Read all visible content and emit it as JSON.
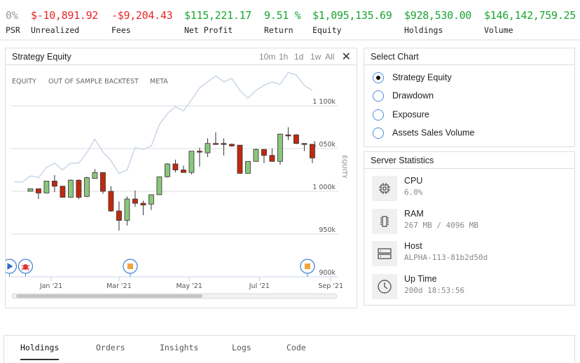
{
  "stats": [
    {
      "value": "0%",
      "label": "PSR",
      "color": "#999999"
    },
    {
      "value": "$-10,891.92",
      "label": "Unrealized",
      "color": "#e8262a"
    },
    {
      "value": "-$9,204.43",
      "label": "Fees",
      "color": "#e8262a"
    },
    {
      "value": "$115,221.17",
      "label": "Net Profit",
      "color": "#1aa532"
    },
    {
      "value": "9.51 %",
      "label": "Return",
      "color": "#1aa532"
    },
    {
      "value": "$1,095,135.69",
      "label": "Equity",
      "color": "#1aa532"
    },
    {
      "value": "$928,530.00",
      "label": "Holdings",
      "color": "#1aa532"
    },
    {
      "value": "$146,142,759.25",
      "label": "Volume",
      "color": "#1aa532"
    }
  ],
  "chart_panel": {
    "title": "Strategy Equity",
    "timeframes": [
      "10m",
      "1h",
      "1d",
      "1w",
      "All"
    ],
    "close_icon": "close-icon"
  },
  "chart_data": {
    "type": "candlestick",
    "legend": [
      "EQUITY",
      "OUT OF SAMPLE BACKTEST",
      "META"
    ],
    "ylabel": "EQUITY",
    "ylim": [
      900,
      1140
    ],
    "y_ticks": [
      "900k",
      "950k",
      "1 000k",
      "1 050k",
      "1 100k"
    ],
    "y_tick_values": [
      900,
      950,
      1000,
      1050,
      1100
    ],
    "x_ticks": [
      "Jan '21",
      "Mar '21",
      "May '21",
      "Jul '21",
      "Sep '21"
    ],
    "x_tick_dates": [
      "2021-01-01",
      "2021-03-01",
      "2021-05-01",
      "2021-07-01",
      "2021-09-01"
    ],
    "grid": true,
    "colors": {
      "up": "#8cc57c",
      "down": "#c0290f",
      "meta": "#c9d6e8",
      "flag": "#3d7fd0"
    },
    "candles": [
      {
        "date": "2020-12-14",
        "o": 1000,
        "h": 1003,
        "l": 1000,
        "c": 1003
      },
      {
        "date": "2020-12-21",
        "o": 1003,
        "h": 1003,
        "l": 991,
        "c": 998
      },
      {
        "date": "2020-12-28",
        "o": 998,
        "h": 1012,
        "l": 998,
        "c": 1012
      },
      {
        "date": "2021-01-04",
        "o": 1012,
        "h": 1019,
        "l": 999,
        "c": 1006
      },
      {
        "date": "2021-01-11",
        "o": 1006,
        "h": 1006,
        "l": 993,
        "c": 993
      },
      {
        "date": "2021-01-18",
        "o": 993,
        "h": 1014,
        "l": 993,
        "c": 1013
      },
      {
        "date": "2021-01-25",
        "o": 1013,
        "h": 1014,
        "l": 991,
        "c": 993
      },
      {
        "date": "2021-02-01",
        "o": 994,
        "h": 1017,
        "l": 993,
        "c": 1016
      },
      {
        "date": "2021-02-08",
        "o": 1015,
        "h": 1026,
        "l": 1015,
        "c": 1022
      },
      {
        "date": "2021-02-15",
        "o": 1022,
        "h": 1022,
        "l": 997,
        "c": 1000
      },
      {
        "date": "2021-02-22",
        "o": 1000,
        "h": 1006,
        "l": 976,
        "c": 977
      },
      {
        "date": "2021-03-01",
        "o": 977,
        "h": 988,
        "l": 954,
        "c": 966
      },
      {
        "date": "2021-03-08",
        "o": 966,
        "h": 994,
        "l": 960,
        "c": 991
      },
      {
        "date": "2021-03-15",
        "o": 991,
        "h": 1001,
        "l": 982,
        "c": 986
      },
      {
        "date": "2021-03-22",
        "o": 986,
        "h": 989,
        "l": 972,
        "c": 984
      },
      {
        "date": "2021-03-29",
        "o": 985,
        "h": 996,
        "l": 978,
        "c": 996
      },
      {
        "date": "2021-04-05",
        "o": 996,
        "h": 1017,
        "l": 996,
        "c": 1017
      },
      {
        "date": "2021-04-12",
        "o": 1017,
        "h": 1033,
        "l": 1016,
        "c": 1032
      },
      {
        "date": "2021-04-19",
        "o": 1032,
        "h": 1037,
        "l": 1022,
        "c": 1025
      },
      {
        "date": "2021-04-26",
        "o": 1025,
        "h": 1030,
        "l": 1022,
        "c": 1022
      },
      {
        "date": "2021-05-03",
        "o": 1022,
        "h": 1047,
        "l": 1020,
        "c": 1047
      },
      {
        "date": "2021-05-10",
        "o": 1047,
        "h": 1051,
        "l": 1029,
        "c": 1046
      },
      {
        "date": "2021-05-17",
        "o": 1045,
        "h": 1062,
        "l": 1040,
        "c": 1056
      },
      {
        "date": "2021-05-24",
        "o": 1056,
        "h": 1069,
        "l": 1056,
        "c": 1056
      },
      {
        "date": "2021-05-31",
        "o": 1056,
        "h": 1062,
        "l": 1042,
        "c": 1055
      },
      {
        "date": "2021-06-07",
        "o": 1055,
        "h": 1056,
        "l": 1052,
        "c": 1053
      },
      {
        "date": "2021-06-14",
        "o": 1054,
        "h": 1054,
        "l": 1021,
        "c": 1021
      },
      {
        "date": "2021-06-21",
        "o": 1021,
        "h": 1035,
        "l": 1021,
        "c": 1035
      },
      {
        "date": "2021-06-28",
        "o": 1035,
        "h": 1050,
        "l": 1035,
        "c": 1049
      },
      {
        "date": "2021-07-05",
        "o": 1049,
        "h": 1049,
        "l": 1033,
        "c": 1042
      },
      {
        "date": "2021-07-12",
        "o": 1042,
        "h": 1050,
        "l": 1035,
        "c": 1035
      },
      {
        "date": "2021-07-19",
        "o": 1035,
        "h": 1067,
        "l": 1031,
        "c": 1067
      },
      {
        "date": "2021-07-26",
        "o": 1066,
        "h": 1075,
        "l": 1060,
        "c": 1066
      },
      {
        "date": "2021-08-02",
        "o": 1066,
        "h": 1067,
        "l": 1055,
        "c": 1056
      },
      {
        "date": "2021-08-09",
        "o": 1056,
        "h": 1056,
        "l": 1047,
        "c": 1055
      },
      {
        "date": "2021-08-16",
        "o": 1055,
        "h": 1055,
        "l": 1033,
        "c": 1039
      }
    ],
    "meta": {
      "dates": [
        "2020-11-30",
        "2020-12-07",
        "2020-12-14",
        "2020-12-21",
        "2020-12-28",
        "2021-01-04",
        "2021-01-11",
        "2021-01-18",
        "2021-01-25",
        "2021-02-01",
        "2021-02-08",
        "2021-02-15",
        "2021-02-22",
        "2021-03-01",
        "2021-03-08",
        "2021-03-15",
        "2021-03-22",
        "2021-03-29",
        "2021-04-05",
        "2021-04-12",
        "2021-04-19",
        "2021-04-26",
        "2021-05-03",
        "2021-05-10",
        "2021-05-17",
        "2021-05-24",
        "2021-05-31",
        "2021-06-07",
        "2021-06-14",
        "2021-06-21",
        "2021-06-28",
        "2021-07-05",
        "2021-07-12",
        "2021-07-19",
        "2021-07-26",
        "2021-08-02",
        "2021-08-09",
        "2021-08-16"
      ],
      "values": [
        1011,
        1011,
        1018,
        1016,
        1028,
        1033,
        1025,
        1033,
        1033,
        1045,
        1061,
        1046,
        1036,
        1021,
        1025,
        1051,
        1049,
        1053,
        1078,
        1091,
        1099,
        1094,
        1107,
        1121,
        1128,
        1135,
        1128,
        1132,
        1118,
        1109,
        1118,
        1124,
        1128,
        1125,
        1139,
        1136,
        1124,
        1118
      ]
    },
    "flags": [
      {
        "icon": "play-icon",
        "date": "2020-11-30"
      },
      {
        "icon": "bug-icon",
        "date": "2020-12-14"
      },
      {
        "icon": "stop-icon",
        "date": "2021-03-15"
      },
      {
        "icon": "stop-icon",
        "date": "2021-08-16"
      }
    ]
  },
  "select_chart": {
    "title": "Select Chart",
    "options": [
      {
        "label": "Strategy Equity",
        "selected": true
      },
      {
        "label": "Drawdown",
        "selected": false
      },
      {
        "label": "Exposure",
        "selected": false
      },
      {
        "label": "Assets Sales Volume",
        "selected": false
      }
    ]
  },
  "server": {
    "title": "Server Statistics",
    "rows": [
      {
        "name": "CPU",
        "value": "6.0%",
        "icon": "cpu-icon"
      },
      {
        "name": "RAM",
        "value": "267 MB / 4096 MB",
        "icon": "memory-icon"
      },
      {
        "name": "Host",
        "value": "ALPHA-113-81b2d50d",
        "icon": "server-icon"
      },
      {
        "name": "Up Time",
        "value": "200d 18:53:56",
        "icon": "clock-icon"
      }
    ]
  },
  "tabs": [
    {
      "label": "Holdings",
      "active": true
    },
    {
      "label": "Orders"
    },
    {
      "label": "Insights"
    },
    {
      "label": "Logs"
    },
    {
      "label": "Code"
    }
  ]
}
